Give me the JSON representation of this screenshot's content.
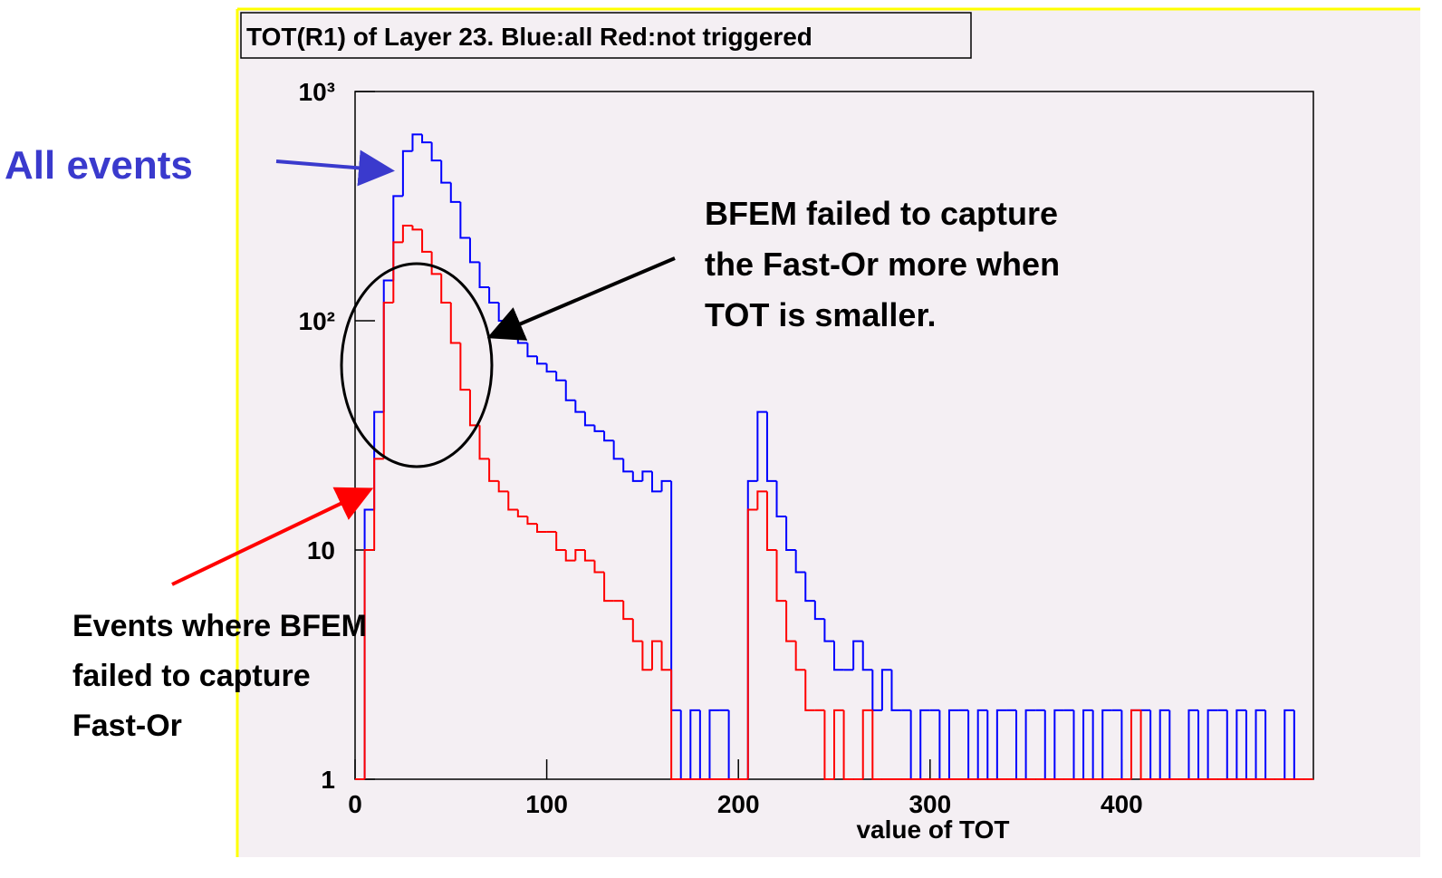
{
  "chart_data": {
    "type": "histogram",
    "title": "TOT(R1) of Layer 23. Blue:all Red:not triggered",
    "x_label": "value of TOT",
    "log_y": true,
    "bins": [
      0,
      5,
      10,
      15,
      20,
      25,
      30,
      35,
      40,
      45,
      50,
      55,
      60,
      65,
      70,
      75,
      80,
      85,
      90,
      95,
      100,
      105,
      110,
      115,
      120,
      125,
      130,
      135,
      140,
      145,
      150,
      155,
      160,
      165,
      170,
      175,
      180,
      185,
      190,
      195,
      200,
      205,
      210,
      215,
      220,
      225,
      230,
      235,
      240,
      245,
      250,
      255,
      260,
      265,
      270,
      275,
      280,
      285,
      290,
      295,
      300,
      305,
      310,
      315,
      320,
      325,
      330,
      335,
      340,
      345,
      350,
      355,
      360,
      365,
      370,
      375,
      380,
      385,
      390,
      395,
      400,
      405,
      410,
      415,
      420,
      425,
      430,
      435,
      440,
      445,
      450,
      455,
      460,
      465,
      470,
      475,
      480,
      485,
      490,
      495,
      500
    ],
    "series": [
      {
        "name": "All events",
        "color": "#0000ff",
        "values": [
          0,
          15,
          40,
          150,
          350,
          550,
          650,
          600,
          500,
          400,
          330,
          230,
          180,
          140,
          120,
          100,
          90,
          80,
          70,
          65,
          60,
          55,
          45,
          40,
          35,
          33,
          30,
          25,
          22,
          20,
          22,
          18,
          20,
          2,
          1,
          2,
          1,
          2,
          2,
          1,
          1,
          20,
          40,
          20,
          14,
          10,
          8,
          6,
          5,
          4,
          3,
          3,
          4,
          3,
          2,
          3,
          2,
          2,
          1,
          2,
          2,
          1,
          2,
          2,
          1,
          2,
          1,
          2,
          2,
          1,
          2,
          2,
          1,
          2,
          2,
          1,
          2,
          1,
          2,
          2,
          1,
          2,
          2,
          1,
          2,
          1,
          1,
          2,
          1,
          2,
          2,
          1,
          2,
          1,
          2,
          1,
          1,
          2,
          1,
          1
        ]
      },
      {
        "name": "not triggered",
        "color": "#ff0000",
        "values": [
          0,
          10,
          25,
          120,
          220,
          260,
          250,
          200,
          160,
          120,
          80,
          50,
          35,
          25,
          20,
          18,
          15,
          14,
          13,
          12,
          12,
          10,
          9,
          10,
          9,
          8,
          6,
          6,
          5,
          4,
          3,
          4,
          3,
          1,
          0,
          0,
          1,
          0,
          0,
          0,
          1,
          15,
          18,
          10,
          6,
          4,
          3,
          2,
          2,
          1,
          2,
          1,
          1,
          2,
          1,
          1,
          1,
          0,
          1,
          1,
          1,
          0,
          1,
          1,
          0,
          1,
          0,
          1,
          0,
          0,
          1,
          0,
          0,
          1,
          0,
          0,
          1,
          0,
          0,
          0,
          1,
          2,
          0,
          1,
          0,
          1,
          0,
          0,
          0,
          0,
          0,
          0,
          0,
          0,
          0,
          0,
          0,
          0,
          0,
          0
        ]
      }
    ],
    "xlim": [
      0,
      500
    ],
    "xticks": [
      0,
      100,
      200,
      300,
      400
    ],
    "ylim": [
      1,
      1000
    ],
    "yticks": [
      {
        "value": 1,
        "label": "1"
      },
      10,
      {
        "value": 100,
        "label": "10²"
      },
      {
        "value": 1000,
        "label": "10³"
      }
    ],
    "annotations": {
      "all": "All events",
      "bfem": [
        "BFEM failed to capture",
        "the Fast-Or more when",
        "TOT is smaller."
      ],
      "events": [
        "Events where BFEM",
        "failed to capture",
        "Fast-Or"
      ]
    }
  }
}
